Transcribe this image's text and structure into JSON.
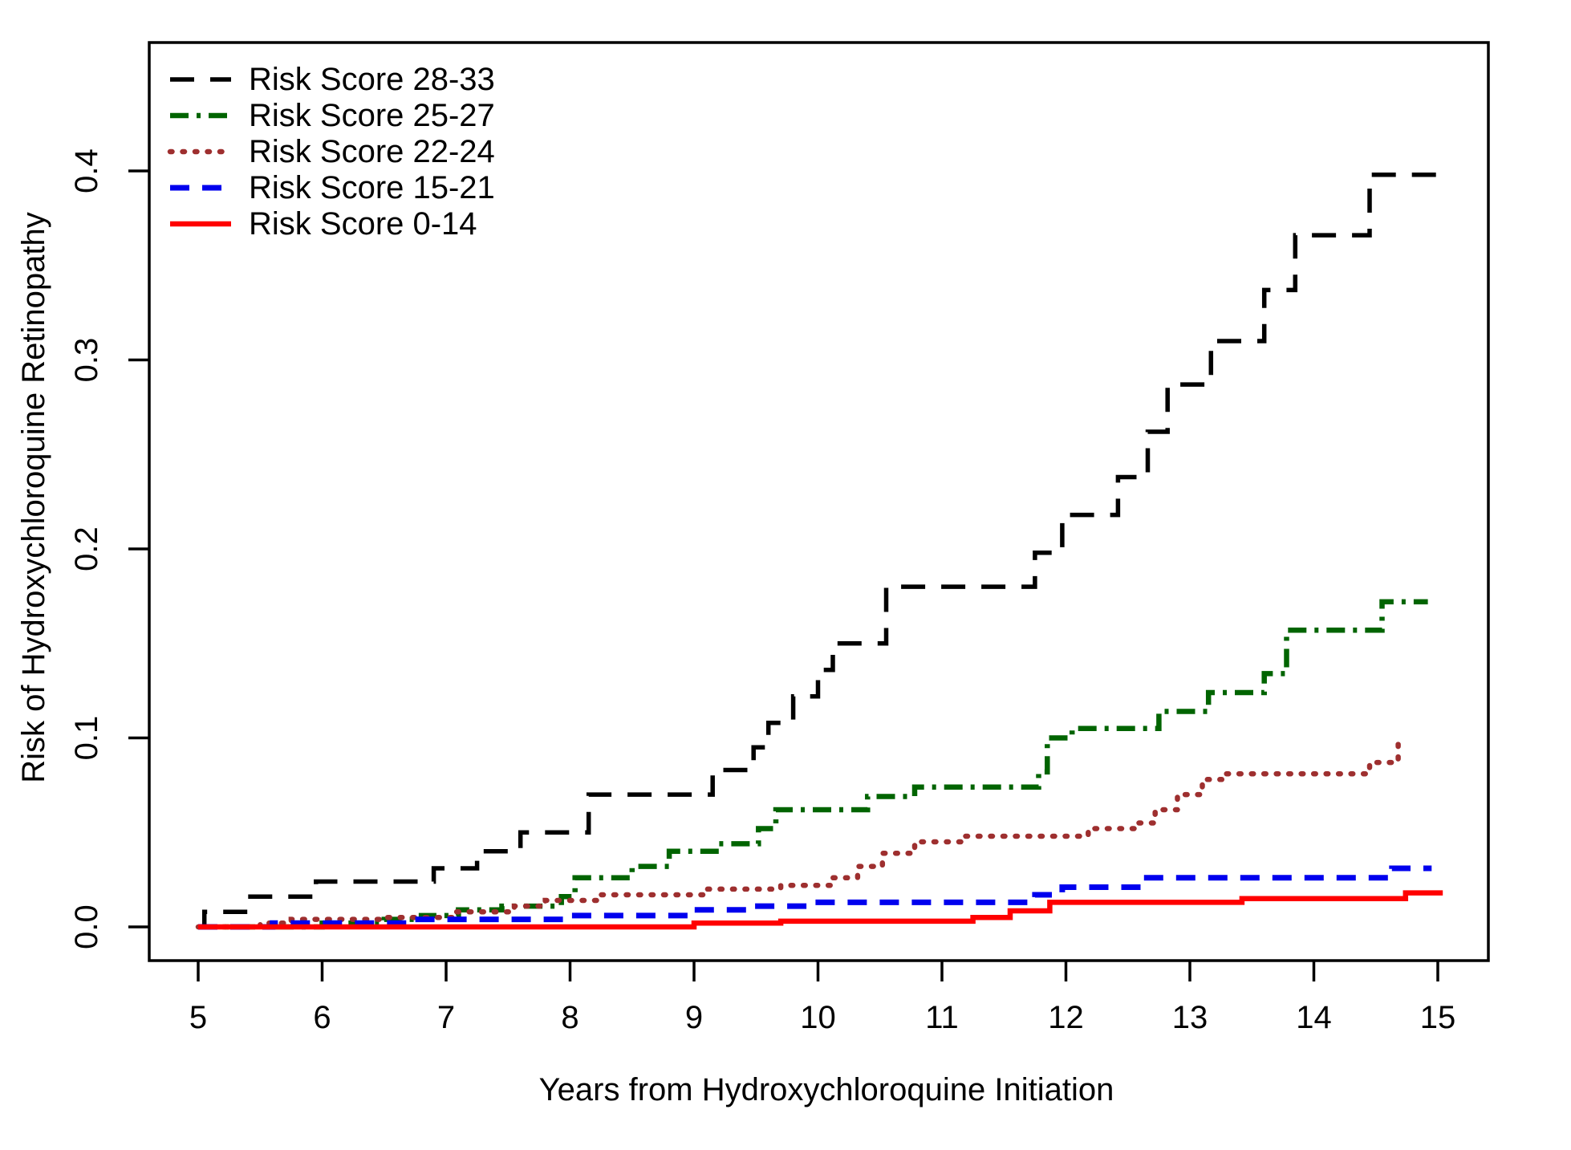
{
  "chart_data": {
    "type": "line",
    "line_style": "step-post",
    "title": "",
    "xlabel": "Years from Hydroxychloroquine Initiation",
    "ylabel": "Risk of Hydroxychloroquine Retinopathy",
    "xlim": [
      4.6,
      15.4
    ],
    "ylim": [
      -0.018,
      0.468
    ],
    "grid": false,
    "legend_position": "top-left",
    "x_ticks": {
      "values": [
        5,
        6,
        7,
        8,
        9,
        10,
        11,
        12,
        13,
        14,
        15
      ],
      "labels": [
        "5",
        "6",
        "7",
        "8",
        "9",
        "10",
        "11",
        "12",
        "13",
        "14",
        "15"
      ]
    },
    "y_ticks": {
      "values": [
        0.0,
        0.1,
        0.2,
        0.3,
        0.4
      ],
      "labels": [
        "0.0",
        "0.1",
        "0.2",
        "0.3",
        "0.4"
      ]
    },
    "series": [
      {
        "name": "Risk Score 28-33",
        "color": "#000000",
        "dash": "longdash",
        "points": [
          [
            5.0,
            0
          ],
          [
            5.05,
            0.008
          ],
          [
            5.4,
            0.016
          ],
          [
            5.95,
            0.024
          ],
          [
            6.9,
            0.031
          ],
          [
            7.25,
            0.04
          ],
          [
            7.6,
            0.05
          ],
          [
            8.15,
            0.07
          ],
          [
            9.15,
            0.083
          ],
          [
            9.48,
            0.095
          ],
          [
            9.6,
            0.108
          ],
          [
            9.8,
            0.122
          ],
          [
            10.0,
            0.136
          ],
          [
            10.12,
            0.15
          ],
          [
            10.55,
            0.18
          ],
          [
            11.75,
            0.198
          ],
          [
            11.97,
            0.218
          ],
          [
            12.42,
            0.238
          ],
          [
            12.66,
            0.262
          ],
          [
            12.82,
            0.287
          ],
          [
            13.17,
            0.31
          ],
          [
            13.6,
            0.337
          ],
          [
            13.85,
            0.366
          ],
          [
            14.45,
            0.398
          ],
          [
            15.02,
            0.398
          ]
        ]
      },
      {
        "name": "Risk Score 25-27",
        "color": "#006400",
        "dash": "dashdot",
        "points": [
          [
            5.0,
            0
          ],
          [
            6.0,
            0.002
          ],
          [
            6.5,
            0.004
          ],
          [
            6.8,
            0.006
          ],
          [
            7.1,
            0.009
          ],
          [
            7.45,
            0.011
          ],
          [
            7.93,
            0.016
          ],
          [
            8.04,
            0.026
          ],
          [
            8.5,
            0.032
          ],
          [
            8.8,
            0.04
          ],
          [
            9.2,
            0.044
          ],
          [
            9.52,
            0.052
          ],
          [
            9.66,
            0.062
          ],
          [
            10.4,
            0.069
          ],
          [
            10.78,
            0.074
          ],
          [
            11.78,
            0.082
          ],
          [
            11.85,
            0.1
          ],
          [
            12.05,
            0.105
          ],
          [
            12.75,
            0.114
          ],
          [
            13.15,
            0.124
          ],
          [
            13.6,
            0.134
          ],
          [
            13.78,
            0.157
          ],
          [
            14.55,
            0.172
          ],
          [
            14.92,
            0.172
          ]
        ]
      },
      {
        "name": "Risk Score 22-24",
        "color": "#9E2F2F",
        "dash": "dotted",
        "points": [
          [
            5.0,
            0
          ],
          [
            5.5,
            0.002
          ],
          [
            5.75,
            0.004
          ],
          [
            6.5,
            0.005
          ],
          [
            7.07,
            0.008
          ],
          [
            7.55,
            0.011
          ],
          [
            7.8,
            0.014
          ],
          [
            8.25,
            0.017
          ],
          [
            9.1,
            0.02
          ],
          [
            9.7,
            0.022
          ],
          [
            10.12,
            0.026
          ],
          [
            10.32,
            0.032
          ],
          [
            10.52,
            0.039
          ],
          [
            10.78,
            0.045
          ],
          [
            11.18,
            0.048
          ],
          [
            12.18,
            0.052
          ],
          [
            12.55,
            0.055
          ],
          [
            12.72,
            0.062
          ],
          [
            12.9,
            0.07
          ],
          [
            13.1,
            0.078
          ],
          [
            13.26,
            0.081
          ],
          [
            14.45,
            0.087
          ],
          [
            14.68,
            0.097
          ],
          [
            14.73,
            0.097
          ]
        ]
      },
      {
        "name": "Risk Score 15-21",
        "color": "#0000EE",
        "dash": "dashed",
        "points": [
          [
            5.0,
            0
          ],
          [
            5.6,
            0.002
          ],
          [
            6.75,
            0.004
          ],
          [
            7.92,
            0.006
          ],
          [
            9.0,
            0.009
          ],
          [
            9.45,
            0.011
          ],
          [
            9.95,
            0.013
          ],
          [
            11.75,
            0.017
          ],
          [
            11.97,
            0.021
          ],
          [
            12.62,
            0.026
          ],
          [
            14.63,
            0.031
          ],
          [
            14.95,
            0.031
          ]
        ]
      },
      {
        "name": "Risk Score 0-14",
        "color": "#FF0000",
        "dash": "solid",
        "points": [
          [
            5.0,
            0
          ],
          [
            9.0,
            0.002
          ],
          [
            9.7,
            0.003
          ],
          [
            11.25,
            0.005
          ],
          [
            11.55,
            0.0085
          ],
          [
            11.87,
            0.013
          ],
          [
            13.42,
            0.015
          ],
          [
            14.74,
            0.018
          ],
          [
            15.04,
            0.018
          ]
        ]
      }
    ]
  }
}
